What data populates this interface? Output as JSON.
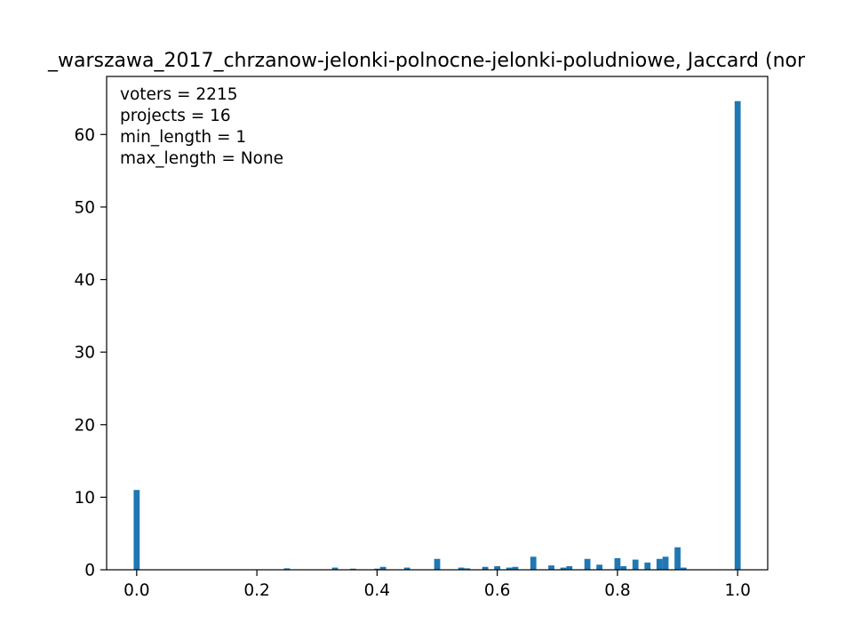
{
  "chart_data": {
    "type": "bar",
    "title": "_warszawa_2017_chrzanow-jelonki-polnocne-jelonki-poludniowe, Jaccard (nor",
    "xlabel": "",
    "ylabel": "",
    "xlim": [
      -0.05,
      1.05
    ],
    "ylim": [
      0,
      68
    ],
    "grid": false,
    "bar_color": "#1f77b4",
    "bin_width": 0.01,
    "x_ticks": [
      {
        "value": 0.0,
        "label": "0.0"
      },
      {
        "value": 0.2,
        "label": "0.2"
      },
      {
        "value": 0.4,
        "label": "0.4"
      },
      {
        "value": 0.6,
        "label": "0.6"
      },
      {
        "value": 0.8,
        "label": "0.8"
      },
      {
        "value": 1.0,
        "label": "1.0"
      }
    ],
    "y_ticks": [
      {
        "value": 0,
        "label": "0"
      },
      {
        "value": 10,
        "label": "10"
      },
      {
        "value": 20,
        "label": "20"
      },
      {
        "value": 30,
        "label": "30"
      },
      {
        "value": 40,
        "label": "40"
      },
      {
        "value": 50,
        "label": "50"
      },
      {
        "value": 60,
        "label": "60"
      }
    ],
    "annotation_lines": [
      "voters = 2215",
      "projects = 16",
      "min_length = 1",
      "max_length = None"
    ],
    "bins": [
      {
        "x": 0.0,
        "value": 11.0
      },
      {
        "x": 0.18,
        "value": 0.05
      },
      {
        "x": 0.25,
        "value": 0.2
      },
      {
        "x": 0.27,
        "value": 0.05
      },
      {
        "x": 0.3,
        "value": 0.05
      },
      {
        "x": 0.33,
        "value": 0.3
      },
      {
        "x": 0.36,
        "value": 0.15
      },
      {
        "x": 0.4,
        "value": 0.15
      },
      {
        "x": 0.41,
        "value": 0.4
      },
      {
        "x": 0.45,
        "value": 0.3
      },
      {
        "x": 0.5,
        "value": 1.5
      },
      {
        "x": 0.54,
        "value": 0.3
      },
      {
        "x": 0.55,
        "value": 0.2
      },
      {
        "x": 0.58,
        "value": 0.4
      },
      {
        "x": 0.6,
        "value": 0.5
      },
      {
        "x": 0.62,
        "value": 0.3
      },
      {
        "x": 0.63,
        "value": 0.4
      },
      {
        "x": 0.66,
        "value": 1.8
      },
      {
        "x": 0.69,
        "value": 0.6
      },
      {
        "x": 0.71,
        "value": 0.3
      },
      {
        "x": 0.72,
        "value": 0.5
      },
      {
        "x": 0.75,
        "value": 1.5
      },
      {
        "x": 0.77,
        "value": 0.7
      },
      {
        "x": 0.8,
        "value": 1.6
      },
      {
        "x": 0.81,
        "value": 0.5
      },
      {
        "x": 0.83,
        "value": 1.4
      },
      {
        "x": 0.85,
        "value": 1.0
      },
      {
        "x": 0.87,
        "value": 1.5
      },
      {
        "x": 0.88,
        "value": 1.8
      },
      {
        "x": 0.9,
        "value": 3.1
      },
      {
        "x": 0.91,
        "value": 0.3
      },
      {
        "x": 1.0,
        "value": 64.6
      }
    ]
  }
}
